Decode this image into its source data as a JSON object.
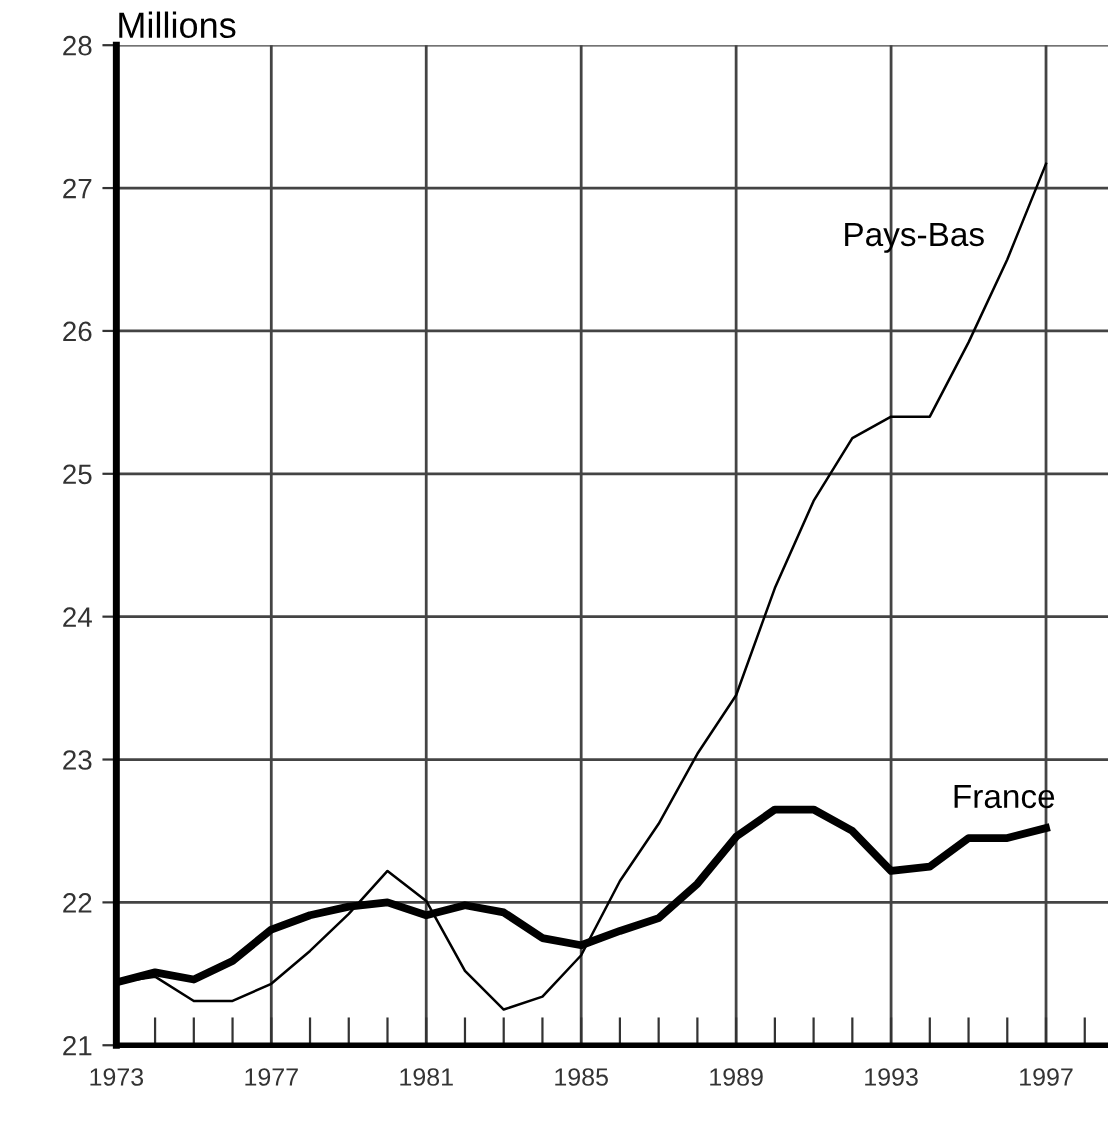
{
  "chart_data": {
    "type": "line",
    "ylabel": "Millions",
    "x": [
      1973,
      1974,
      1975,
      1976,
      1977,
      1978,
      1979,
      1980,
      1981,
      1982,
      1983,
      1984,
      1985,
      1986,
      1987,
      1988,
      1989,
      1990,
      1991,
      1992,
      1993,
      1994,
      1995,
      1996,
      1997
    ],
    "series": [
      {
        "name": "Pays-Bas",
        "color": "#000000",
        "values": [
          21.44,
          21.48,
          21.31,
          21.31,
          21.43,
          21.66,
          21.92,
          22.22,
          22.01,
          21.52,
          21.25,
          21.34,
          21.63,
          22.15,
          22.55,
          23.04,
          23.45,
          24.2,
          24.81,
          25.25,
          25.4,
          25.4,
          25.92,
          26.5,
          27.17
        ]
      },
      {
        "name": "France",
        "color": "#000000",
        "values": [
          21.44,
          21.51,
          21.46,
          21.59,
          21.81,
          21.91,
          21.97,
          22.0,
          21.91,
          21.98,
          21.93,
          21.75,
          21.7,
          21.8,
          21.89,
          22.13,
          22.46,
          22.65,
          22.65,
          22.5,
          22.22,
          22.25,
          22.45,
          22.45,
          22.52
        ]
      }
    ],
    "xlim": [
      1973,
      1998.6
    ],
    "ylim": [
      21,
      28
    ],
    "xticks": [
      1973,
      {
        "value": 1974,
        "label": null
      },
      {
        "value": 1975,
        "label": null
      },
      {
        "value": 1976,
        "label": null
      },
      1977,
      {
        "value": 1978,
        "label": null
      },
      {
        "value": 1979,
        "label": null
      },
      {
        "value": 1980,
        "label": null
      },
      1981,
      {
        "value": 1982,
        "label": null
      },
      {
        "value": 1983,
        "label": null
      },
      {
        "value": 1984,
        "label": null
      },
      1985,
      {
        "value": 1986,
        "label": null
      },
      {
        "value": 1987,
        "label": null
      },
      {
        "value": 1988,
        "label": null
      },
      1989,
      {
        "value": 1990,
        "label": null
      },
      {
        "value": 1991,
        "label": null
      },
      {
        "value": 1992,
        "label": null
      },
      1993,
      {
        "value": 1994,
        "label": null
      },
      {
        "value": 1995,
        "label": null
      },
      {
        "value": 1996,
        "label": null
      },
      1997,
      {
        "value": 1998,
        "label": null
      }
    ],
    "yticks": [
      21,
      22,
      23,
      24,
      25,
      26,
      27,
      28
    ],
    "grid": true,
    "marker": "none",
    "line_style": "solid",
    "legend": false
  }
}
